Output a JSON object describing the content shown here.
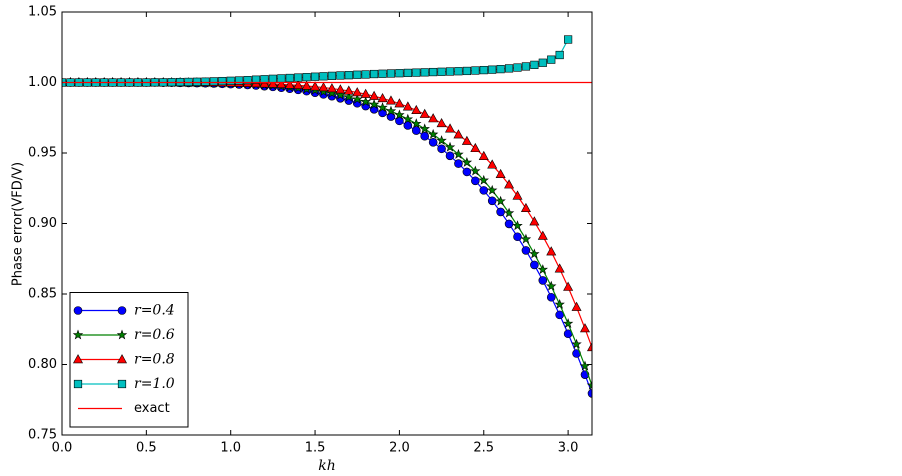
{
  "chart_data": {
    "type": "line",
    "xlabel": "kh",
    "ylabel": "Phase error(VFD/V)",
    "xlim": [
      0,
      3.14159
    ],
    "ylim": [
      0.75,
      1.05
    ],
    "xticks": [
      {
        "value": 0,
        "label": "0.0"
      },
      {
        "value": 0.5,
        "label": "0.5"
      },
      {
        "value": 1,
        "label": "1.0"
      },
      {
        "value": 1.5,
        "label": "1.5"
      },
      {
        "value": 2,
        "label": "2.0"
      },
      {
        "value": 2.5,
        "label": "2.5"
      },
      {
        "value": 3,
        "label": "3.0"
      }
    ],
    "yticks": [
      0.75,
      {
        "value": 0.8,
        "label": "0.80"
      },
      0.85,
      {
        "value": 0.9,
        "label": "0.90"
      },
      0.95,
      {
        "value": 1,
        "label": "1.00"
      },
      1.05
    ],
    "legend": "lower left",
    "x": [
      0,
      0.05,
      0.1,
      0.15,
      0.2,
      0.25,
      0.3,
      0.35,
      0.4,
      0.45,
      0.5,
      0.55,
      0.6,
      0.65,
      0.7,
      0.75,
      0.8,
      0.85,
      0.9,
      0.95,
      1,
      1.05,
      1.1,
      1.15,
      1.2,
      1.25,
      1.3,
      1.35,
      1.4,
      1.45,
      1.5,
      1.55,
      1.6,
      1.65,
      1.7,
      1.75,
      1.8,
      1.85,
      1.9,
      1.95,
      2,
      2.05,
      2.1,
      2.15,
      2.2,
      2.25,
      2.3,
      2.35,
      2.4,
      2.45,
      2.5,
      2.55,
      2.6,
      2.65,
      2.7,
      2.75,
      2.8,
      2.85,
      2.9,
      2.95,
      3,
      3.05,
      3.1,
      3.14159
    ],
    "series": [
      {
        "name": "r=0.4",
        "color": "#0000ff",
        "marker": "circle",
        "values": [
          1,
          1,
          1,
          1,
          1,
          1,
          1,
          1,
          1,
          1,
          1,
          1,
          0.9999,
          0.9999,
          0.9998,
          0.9997,
          0.9996,
          0.9995,
          0.9993,
          0.9991,
          0.9989,
          0.9986,
          0.9983,
          0.9979,
          0.9974,
          0.9969,
          0.9963,
          0.9956,
          0.9948,
          0.9939,
          0.9928,
          0.9916,
          0.9903,
          0.9888,
          0.9872,
          0.9853,
          0.9833,
          0.981,
          0.9785,
          0.9758,
          0.9728,
          0.9695,
          0.9659,
          0.9619,
          0.9576,
          0.953,
          0.948,
          0.9425,
          0.9366,
          0.9303,
          0.9235,
          0.9161,
          0.9082,
          0.8997,
          0.8906,
          0.8809,
          0.8706,
          0.8596,
          0.8477,
          0.8352,
          0.8218,
          0.8078,
          0.7928,
          0.7795
        ]
      },
      {
        "name": "r=0.6",
        "color": "#008000",
        "marker": "star",
        "values": [
          1,
          1,
          1,
          1,
          1,
          1,
          1,
          1,
          1,
          1,
          1,
          1,
          1,
          0.9999,
          0.9999,
          0.9998,
          0.9998,
          0.9997,
          0.9996,
          0.9995,
          0.9993,
          0.9991,
          0.9988,
          0.9985,
          0.9982,
          0.9978,
          0.9973,
          0.9967,
          0.9961,
          0.9953,
          0.9945,
          0.9935,
          0.9924,
          0.9911,
          0.9897,
          0.9881,
          0.9863,
          0.9844,
          0.9822,
          0.9797,
          0.977,
          0.974,
          0.9708,
          0.9671,
          0.9632,
          0.9588,
          0.9541,
          0.949,
          0.9433,
          0.9372,
          0.9306,
          0.9235,
          0.9158,
          0.9074,
          0.8984,
          0.8889,
          0.8784,
          0.8673,
          0.8555,
          0.8426,
          0.829,
          0.8144,
          0.7989,
          0.7852
        ]
      },
      {
        "name": "r=0.8",
        "color": "#ff0000",
        "marker": "triangle",
        "values": [
          1,
          1,
          1,
          1,
          1,
          1,
          1,
          1,
          1,
          1,
          1,
          1,
          1,
          1,
          1,
          0.9999,
          0.9999,
          0.9999,
          0.9998,
          0.9998,
          0.9997,
          0.9996,
          0.9995,
          0.9993,
          0.9991,
          0.9989,
          0.9987,
          0.9983,
          0.998,
          0.9975,
          0.997,
          0.9964,
          0.9957,
          0.9949,
          0.994,
          0.9929,
          0.9917,
          0.9903,
          0.9887,
          0.987,
          0.985,
          0.9828,
          0.9803,
          0.9775,
          0.9744,
          0.971,
          0.9672,
          0.963,
          0.9584,
          0.9533,
          0.9477,
          0.9416,
          0.9349,
          0.9275,
          0.9196,
          0.9108,
          0.9013,
          0.8911,
          0.88,
          0.8679,
          0.8549,
          0.8407,
          0.8255,
          0.8121
        ]
      },
      {
        "name": "r=1.0",
        "color": "#00bfbf",
        "marker": "square",
        "values": [
          1,
          1,
          1,
          1,
          1,
          1,
          1,
          1,
          1,
          1,
          1,
          1.0001,
          1.0001,
          1.0002,
          1.0003,
          1.0004,
          1.0005,
          1.0006,
          1.0008,
          1.001,
          1.0012,
          1.0014,
          1.0017,
          1.002,
          1.0023,
          1.0026,
          1.0029,
          1.0032,
          1.0035,
          1.0038,
          1.0041,
          1.0044,
          1.0047,
          1.005,
          1.0052,
          1.0055,
          1.0057,
          1.006,
          1.0062,
          1.0064,
          1.0066,
          1.0068,
          1.007,
          1.0072,
          1.0074,
          1.0076,
          1.0078,
          1.008,
          1.0082,
          1.0085,
          1.0088,
          1.0091,
          1.0095,
          1.01,
          1.0106,
          1.0114,
          1.0125,
          1.014,
          1.0162,
          1.0195,
          1.0305,
          null,
          null,
          null
        ]
      },
      {
        "name": "exact",
        "color": "#ff0000",
        "marker": "none",
        "x": [
          0,
          3.14159
        ],
        "values": [
          1,
          1
        ]
      }
    ]
  }
}
